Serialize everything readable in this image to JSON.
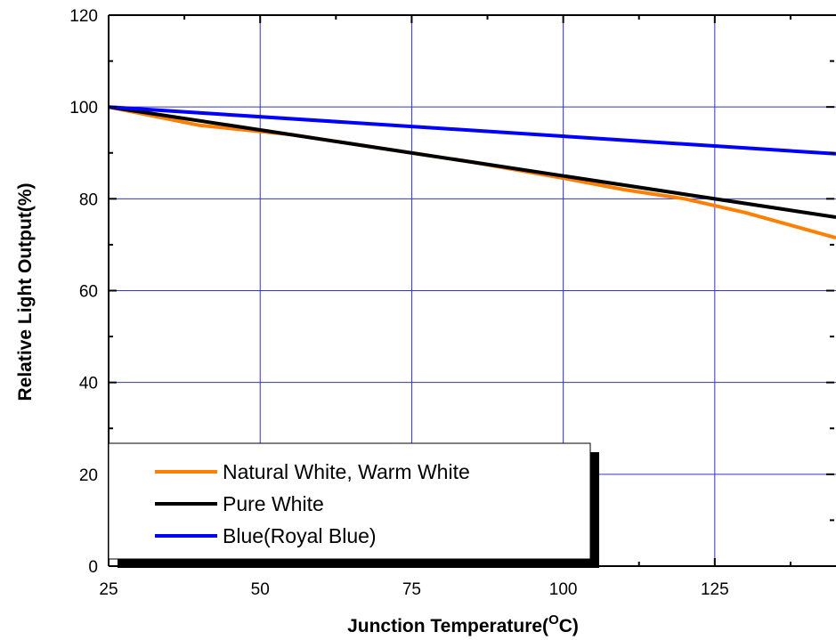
{
  "chart_data": {
    "type": "line",
    "title": "",
    "xlabel": "Junction Temperature(",
    "xlabel_sup": "O",
    "xlabel_tail": "C)",
    "ylabel": "Relative Light Output(%)",
    "xlim": [
      25,
      145
    ],
    "ylim": [
      0,
      120
    ],
    "x_ticks": [
      "25",
      "50",
      "75",
      "100",
      "125"
    ],
    "y_ticks": [
      "0",
      "20",
      "40",
      "60",
      "80",
      "100",
      "120"
    ],
    "grid": true,
    "legend_position": "bottom-left",
    "series": [
      {
        "name": "Natural White, Warm White",
        "color": "#ff8000",
        "x": [
          25,
          40,
          55,
          70,
          85,
          100,
          110,
          120,
          130,
          145
        ],
        "y": [
          100,
          96,
          94,
          91,
          88,
          84.5,
          82,
          80,
          77,
          71.5
        ]
      },
      {
        "name": "Pure White",
        "color": "#000000",
        "x": [
          25,
          145
        ],
        "y": [
          100,
          76
        ]
      },
      {
        "name": "Blue(Royal Blue)",
        "color": "#0000ff",
        "x": [
          25,
          145
        ],
        "y": [
          100,
          89.8
        ]
      }
    ]
  }
}
